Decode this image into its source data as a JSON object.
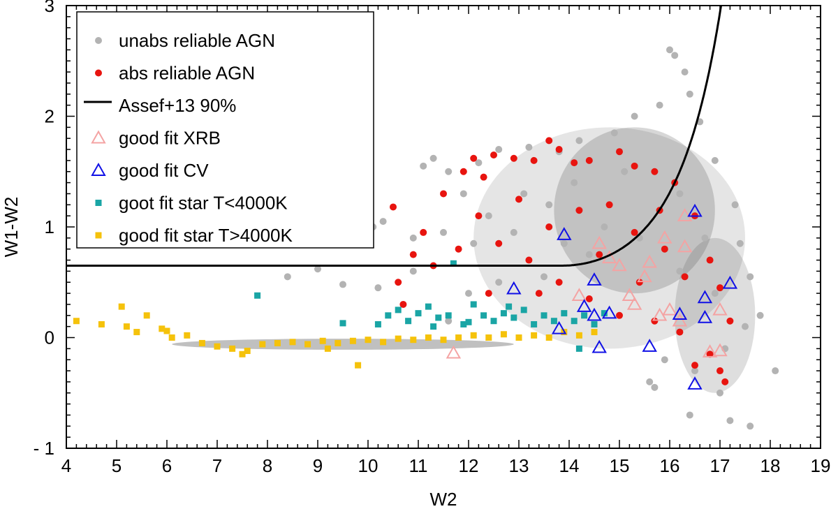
{
  "chart_data": {
    "type": "scatter",
    "title": "",
    "xlabel": "W2",
    "ylabel": "W1-W2",
    "xlim": [
      4,
      19
    ],
    "ylim": [
      -1,
      3
    ],
    "x_ticks": [
      4,
      5,
      6,
      7,
      8,
      9,
      10,
      11,
      12,
      13,
      14,
      15,
      16,
      17,
      18,
      19
    ],
    "x_tick_labels": [
      "4",
      "5",
      "6",
      "7",
      "8",
      "9",
      "10",
      "11",
      "12",
      "13",
      "14",
      "15",
      "16",
      "17",
      "18",
      "19"
    ],
    "y_ticks": [
      -1,
      0,
      1,
      2,
      3
    ],
    "y_tick_labels": [
      "- 1",
      "0",
      "1",
      "2",
      "3"
    ],
    "legend_position": "top-left",
    "series": [
      {
        "name": "unabs reliable AGN",
        "marker": "circle",
        "color": "#b3b3b3",
        "note": "dense cloud, approx 12-18 in W2 and -0.8 to 2.6 in W1-W2; representative points",
        "points": [
          [
            10.1,
            1.0
          ],
          [
            10.3,
            1.05
          ],
          [
            10.9,
            0.9
          ],
          [
            11.1,
            1.55
          ],
          [
            11.3,
            1.62
          ],
          [
            11.6,
            1.5
          ],
          [
            11.9,
            1.3
          ],
          [
            12.2,
            1.58
          ],
          [
            12.6,
            1.7
          ],
          [
            13.2,
            1.72
          ],
          [
            13.8,
            1.68
          ],
          [
            14.2,
            1.78
          ],
          [
            14.9,
            1.85
          ],
          [
            15.3,
            2.0
          ],
          [
            15.8,
            2.1
          ],
          [
            16.0,
            2.6
          ],
          [
            16.1,
            2.55
          ],
          [
            16.3,
            2.4
          ],
          [
            16.4,
            2.2
          ],
          [
            16.6,
            1.95
          ],
          [
            16.9,
            1.6
          ],
          [
            17.3,
            1.2
          ],
          [
            17.4,
            0.85
          ],
          [
            17.6,
            0.55
          ],
          [
            17.8,
            0.2
          ],
          [
            18.1,
            -0.3
          ],
          [
            17.6,
            -0.8
          ],
          [
            17.2,
            -0.75
          ],
          [
            16.4,
            -0.7
          ],
          [
            15.7,
            -0.45
          ],
          [
            15.6,
            -0.4
          ],
          [
            14.4,
            0.75
          ],
          [
            13.9,
            0.85
          ],
          [
            12.6,
            0.5
          ],
          [
            12.0,
            0.4
          ],
          [
            11.6,
            0.15
          ],
          [
            10.9,
            0.6
          ],
          [
            10.2,
            0.45
          ],
          [
            9.5,
            0.48
          ],
          [
            8.4,
            0.55
          ],
          [
            9.0,
            0.62
          ],
          [
            11.5,
            0.95
          ],
          [
            12.4,
            1.1
          ],
          [
            13.1,
            1.3
          ],
          [
            14.1,
            1.4
          ],
          [
            15.1,
            1.5
          ],
          [
            16.2,
            1.3
          ],
          [
            16.7,
            0.9
          ],
          [
            16.9,
            0.4
          ],
          [
            17.1,
            -0.1
          ],
          [
            16.2,
            0.6
          ],
          [
            15.4,
            0.9
          ],
          [
            14.7,
            1.0
          ],
          [
            13.6,
            1.2
          ],
          [
            12.9,
            0.95
          ],
          [
            12.1,
            0.85
          ],
          [
            16.5,
            -0.3
          ],
          [
            17.0,
            -0.5
          ],
          [
            17.5,
            0.1
          ],
          [
            15.9,
            -0.2
          ],
          [
            13.5,
            0.55
          ]
        ]
      },
      {
        "name": "abs reliable AGN",
        "marker": "circle",
        "color": "#e8140f",
        "note": "approx 10.5-17.3 in W2 and -0.4 to 1.8 in W1-W2; representative points",
        "points": [
          [
            10.5,
            1.18
          ],
          [
            10.6,
            0.5
          ],
          [
            10.7,
            0.3
          ],
          [
            10.9,
            0.75
          ],
          [
            11.1,
            0.95
          ],
          [
            11.3,
            0.65
          ],
          [
            11.5,
            1.3
          ],
          [
            11.9,
            1.5
          ],
          [
            12.1,
            1.62
          ],
          [
            12.3,
            1.45
          ],
          [
            12.5,
            1.65
          ],
          [
            12.9,
            1.62
          ],
          [
            13.3,
            1.6
          ],
          [
            13.6,
            1.78
          ],
          [
            13.8,
            1.7
          ],
          [
            14.1,
            1.58
          ],
          [
            14.4,
            1.6
          ],
          [
            15.0,
            1.68
          ],
          [
            15.3,
            1.55
          ],
          [
            15.7,
            1.5
          ],
          [
            16.1,
            1.4
          ],
          [
            16.5,
            1.1
          ],
          [
            16.8,
            0.7
          ],
          [
            17.0,
            0.45
          ],
          [
            17.2,
            0.15
          ],
          [
            17.0,
            -0.3
          ],
          [
            17.1,
            -0.4
          ],
          [
            16.8,
            -0.15
          ],
          [
            16.5,
            -0.25
          ],
          [
            16.2,
            0.05
          ],
          [
            15.7,
            0.15
          ],
          [
            15.0,
            0.2
          ],
          [
            14.4,
            0.35
          ],
          [
            13.8,
            0.5
          ],
          [
            13.2,
            0.7
          ],
          [
            12.6,
            0.85
          ],
          [
            12.2,
            1.1
          ],
          [
            13.0,
            1.25
          ],
          [
            13.6,
            1.0
          ],
          [
            14.2,
            1.15
          ],
          [
            14.8,
            1.2
          ],
          [
            15.3,
            0.95
          ],
          [
            15.9,
            0.8
          ],
          [
            16.3,
            0.55
          ],
          [
            14.6,
            0.75
          ],
          [
            15.4,
            0.5
          ],
          [
            12.4,
            0.4
          ],
          [
            11.8,
            0.8
          ],
          [
            13.4,
            0.4
          ],
          [
            15.8,
            1.15
          ]
        ]
      },
      {
        "name": "goot fit star T<4000K",
        "marker": "square",
        "color": "#1aa5a5",
        "note": "band approx 10.2-14.8 in W2 around W1-W2 0.08-0.3; representative points",
        "points": [
          [
            7.8,
            0.38
          ],
          [
            9.5,
            0.13
          ],
          [
            10.2,
            0.12
          ],
          [
            10.4,
            0.2
          ],
          [
            10.6,
            0.25
          ],
          [
            10.8,
            0.15
          ],
          [
            11.0,
            0.22
          ],
          [
            11.2,
            0.28
          ],
          [
            11.4,
            0.18
          ],
          [
            11.6,
            0.2
          ],
          [
            11.7,
            0.67
          ],
          [
            11.9,
            0.12
          ],
          [
            12.1,
            0.3
          ],
          [
            12.3,
            0.2
          ],
          [
            12.5,
            0.15
          ],
          [
            12.7,
            0.22
          ],
          [
            12.9,
            0.18
          ],
          [
            13.1,
            0.25
          ],
          [
            13.3,
            0.12
          ],
          [
            13.5,
            0.2
          ],
          [
            13.7,
            0.15
          ],
          [
            13.9,
            0.22
          ],
          [
            14.1,
            0.15
          ],
          [
            14.3,
            0.2
          ],
          [
            14.5,
            0.12
          ],
          [
            14.7,
            0.22
          ],
          [
            14.2,
            -0.1
          ],
          [
            12.0,
            0.14
          ],
          [
            11.3,
            0.1
          ],
          [
            12.8,
            0.28
          ]
        ]
      },
      {
        "name": "good fit star T>4000K",
        "marker": "square",
        "color": "#f5c20b",
        "note": "band approx 4.2-14.5 in W2 around W1-W2 -0.1 to 0.1; representative points",
        "points": [
          [
            4.2,
            0.15
          ],
          [
            4.7,
            0.12
          ],
          [
            5.1,
            0.28
          ],
          [
            5.2,
            0.1
          ],
          [
            5.4,
            0.05
          ],
          [
            5.6,
            0.2
          ],
          [
            5.9,
            0.08
          ],
          [
            6.1,
            0.0
          ],
          [
            6.4,
            0.02
          ],
          [
            6.7,
            -0.05
          ],
          [
            7.0,
            -0.08
          ],
          [
            7.3,
            -0.1
          ],
          [
            7.6,
            -0.12
          ],
          [
            7.9,
            -0.06
          ],
          [
            8.2,
            -0.05
          ],
          [
            8.5,
            -0.04
          ],
          [
            8.8,
            -0.06
          ],
          [
            9.1,
            -0.03
          ],
          [
            9.4,
            -0.05
          ],
          [
            9.7,
            -0.03
          ],
          [
            9.8,
            -0.25
          ],
          [
            10.0,
            -0.02
          ],
          [
            10.3,
            -0.04
          ],
          [
            10.6,
            -0.01
          ],
          [
            10.9,
            -0.02
          ],
          [
            11.2,
            0.0
          ],
          [
            11.5,
            -0.02
          ],
          [
            11.8,
            0.0
          ],
          [
            12.1,
            0.02
          ],
          [
            12.4,
            0.0
          ],
          [
            12.7,
            0.03
          ],
          [
            13.0,
            0.0
          ],
          [
            13.3,
            0.02
          ],
          [
            13.6,
            0.0
          ],
          [
            13.9,
            0.05
          ],
          [
            14.2,
            0.02
          ],
          [
            14.5,
            0.05
          ],
          [
            6.0,
            0.06
          ],
          [
            7.5,
            -0.15
          ],
          [
            9.2,
            -0.1
          ]
        ]
      },
      {
        "name": "good fit XRB",
        "marker": "triangle-open",
        "color": "#f4a3a3",
        "points": [
          [
            11.7,
            -0.14
          ],
          [
            14.2,
            0.38
          ],
          [
            14.6,
            0.85
          ],
          [
            14.8,
            0.72
          ],
          [
            15.0,
            0.65
          ],
          [
            15.2,
            0.38
          ],
          [
            15.3,
            0.3
          ],
          [
            15.5,
            0.55
          ],
          [
            15.6,
            0.68
          ],
          [
            15.8,
            0.2
          ],
          [
            15.9,
            0.9
          ],
          [
            16.0,
            0.25
          ],
          [
            16.2,
            0.15
          ],
          [
            16.3,
            0.82
          ],
          [
            16.3,
            1.1
          ],
          [
            16.8,
            -0.13
          ],
          [
            17.0,
            -0.12
          ],
          [
            17.0,
            0.25
          ]
        ]
      },
      {
        "name": "good fit CV",
        "marker": "triangle-open",
        "color": "#1010e6",
        "points": [
          [
            12.9,
            0.44
          ],
          [
            13.8,
            0.08
          ],
          [
            13.9,
            0.93
          ],
          [
            14.3,
            0.28
          ],
          [
            14.5,
            0.52
          ],
          [
            14.5,
            0.2
          ],
          [
            14.6,
            -0.09
          ],
          [
            14.8,
            0.22
          ],
          [
            15.6,
            -0.08
          ],
          [
            16.2,
            0.21
          ],
          [
            16.5,
            -0.42
          ],
          [
            16.5,
            1.14
          ],
          [
            16.7,
            0.18
          ],
          [
            16.7,
            0.36
          ],
          [
            17.2,
            0.49
          ]
        ]
      },
      {
        "name": "Assef+13 90%",
        "marker": "line",
        "color": "#000000",
        "note": "W1-W2 = 0.65 for W2 <= 13.86; W1-W2 = 0.65*exp(0.153*(W2-13.86)^2) for W2 > 13.86"
      }
    ]
  }
}
